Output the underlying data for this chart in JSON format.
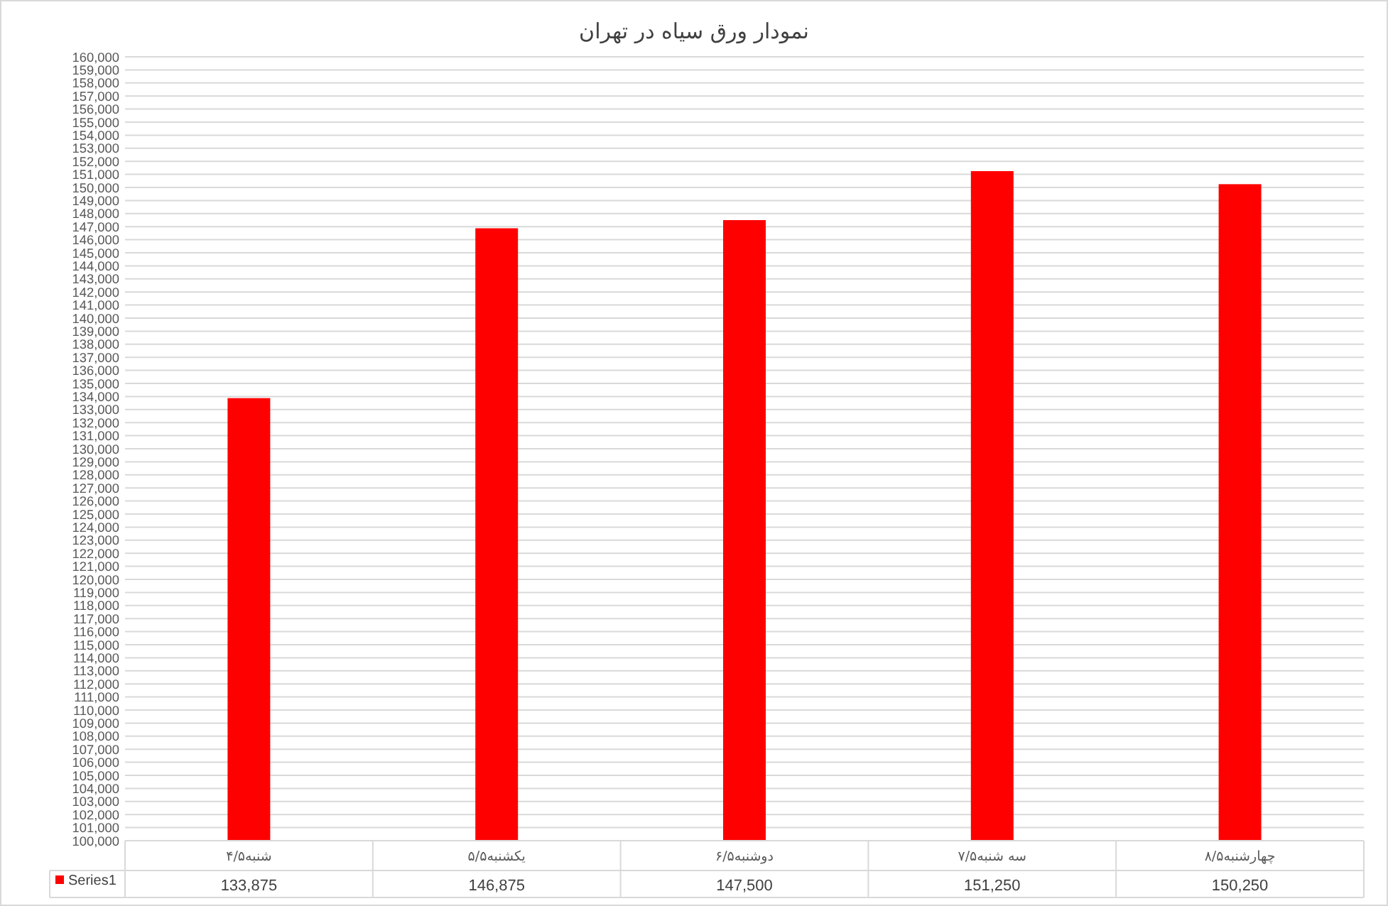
{
  "chart_data": {
    "type": "bar",
    "title": "نمودار ورق سیاه در تهران",
    "categories": [
      "شنبه۴/۵",
      "یکشنبه۵/۵",
      "دوشنبه۶/۵",
      "سه شنبه۷/۵",
      "چهارشنبه۸/۵"
    ],
    "series": [
      {
        "name": "Series1",
        "color": "#ff0000",
        "values": [
          133875,
          146875,
          147500,
          151250,
          150250
        ],
        "value_labels": [
          "133,875",
          "146,875",
          "147,500",
          "151,250",
          "150,250"
        ]
      }
    ],
    "ylim": [
      100000,
      160000
    ],
    "yticks": [
      {
        "value": 100000,
        "label": "100,000"
      },
      {
        "value": 101000,
        "label": "101,000"
      },
      {
        "value": 102000,
        "label": "102,000"
      },
      {
        "value": 103000,
        "label": "103,000"
      },
      {
        "value": 104000,
        "label": "104,000"
      },
      {
        "value": 105000,
        "label": "105,000"
      },
      {
        "value": 106000,
        "label": "106,000"
      },
      {
        "value": 107000,
        "label": "107,000"
      },
      {
        "value": 108000,
        "label": "108,000"
      },
      {
        "value": 109000,
        "label": "109,000"
      },
      {
        "value": 110000,
        "label": "110,000"
      },
      {
        "value": 111000,
        "label": "111,000"
      },
      {
        "value": 112000,
        "label": "112,000"
      },
      {
        "value": 113000,
        "label": "113,000"
      },
      {
        "value": 114000,
        "label": "114,000"
      },
      {
        "value": 115000,
        "label": "115,000"
      },
      {
        "value": 116000,
        "label": "116,000"
      },
      {
        "value": 117000,
        "label": "117,000"
      },
      {
        "value": 118000,
        "label": "118,000"
      },
      {
        "value": 119000,
        "label": "119,000"
      },
      {
        "value": 120000,
        "label": "120,000"
      },
      {
        "value": 121000,
        "label": "121,000"
      },
      {
        "value": 122000,
        "label": "122,000"
      },
      {
        "value": 123000,
        "label": "123,000"
      },
      {
        "value": 124000,
        "label": "124,000"
      },
      {
        "value": 125000,
        "label": "125,000"
      },
      {
        "value": 126000,
        "label": "126,000"
      },
      {
        "value": 127000,
        "label": "127,000"
      },
      {
        "value": 128000,
        "label": "128,000"
      },
      {
        "value": 129000,
        "label": "129,000"
      },
      {
        "value": 130000,
        "label": "130,000"
      },
      {
        "value": 131000,
        "label": "131,000"
      },
      {
        "value": 132000,
        "label": "132,000"
      },
      {
        "value": 133000,
        "label": "133,000"
      },
      {
        "value": 134000,
        "label": "134,000"
      },
      {
        "value": 135000,
        "label": "135,000"
      },
      {
        "value": 136000,
        "label": "136,000"
      },
      {
        "value": 137000,
        "label": "137,000"
      },
      {
        "value": 138000,
        "label": "138,000"
      },
      {
        "value": 139000,
        "label": "139,000"
      },
      {
        "value": 140000,
        "label": "140,000"
      },
      {
        "value": 141000,
        "label": "141,000"
      },
      {
        "value": 142000,
        "label": "142,000"
      },
      {
        "value": 143000,
        "label": "143,000"
      },
      {
        "value": 144000,
        "label": "144,000"
      },
      {
        "value": 145000,
        "label": "145,000"
      },
      {
        "value": 146000,
        "label": "146,000"
      },
      {
        "value": 147000,
        "label": "147,000"
      },
      {
        "value": 148000,
        "label": "148,000"
      },
      {
        "value": 149000,
        "label": "149,000"
      },
      {
        "value": 150000,
        "label": "150,000"
      },
      {
        "value": 151000,
        "label": "151,000"
      },
      {
        "value": 152000,
        "label": "152,000"
      },
      {
        "value": 153000,
        "label": "153,000"
      },
      {
        "value": 154000,
        "label": "154,000"
      },
      {
        "value": 155000,
        "label": "155,000"
      },
      {
        "value": 156000,
        "label": "156,000"
      },
      {
        "value": 157000,
        "label": "157,000"
      },
      {
        "value": 158000,
        "label": "158,000"
      },
      {
        "value": 159000,
        "label": "159,000"
      },
      {
        "value": 160000,
        "label": "160,000"
      }
    ],
    "grid": "y",
    "legend": "bottom"
  }
}
